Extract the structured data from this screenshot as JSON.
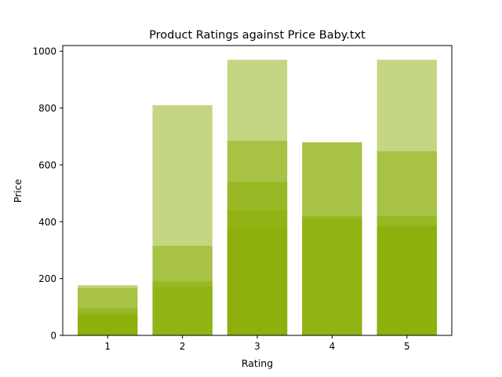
{
  "chart_data": {
    "type": "bar",
    "title": "Product Ratings against Price Baby.txt",
    "xlabel": "Rating",
    "ylabel": "Price",
    "categories": [
      "1",
      "2",
      "3",
      "4",
      "5"
    ],
    "xlim": [
      0.4,
      5.6
    ],
    "ylim": [
      0,
      1020
    ],
    "yticks": [
      0,
      200,
      400,
      600,
      800,
      1000
    ],
    "bar_color": "#8aad06",
    "bar_alpha": 0.5,
    "overlapping_bars_per_rating": {
      "1": [
        177,
        167,
        95,
        75,
        72
      ],
      "2": [
        810,
        315,
        190,
        170
      ],
      "3": [
        970,
        685,
        540,
        440,
        380
      ],
      "4": [
        680,
        678,
        420,
        410
      ],
      "5": [
        970,
        648,
        420,
        385,
        382
      ]
    },
    "grid": false,
    "legend": "none"
  }
}
